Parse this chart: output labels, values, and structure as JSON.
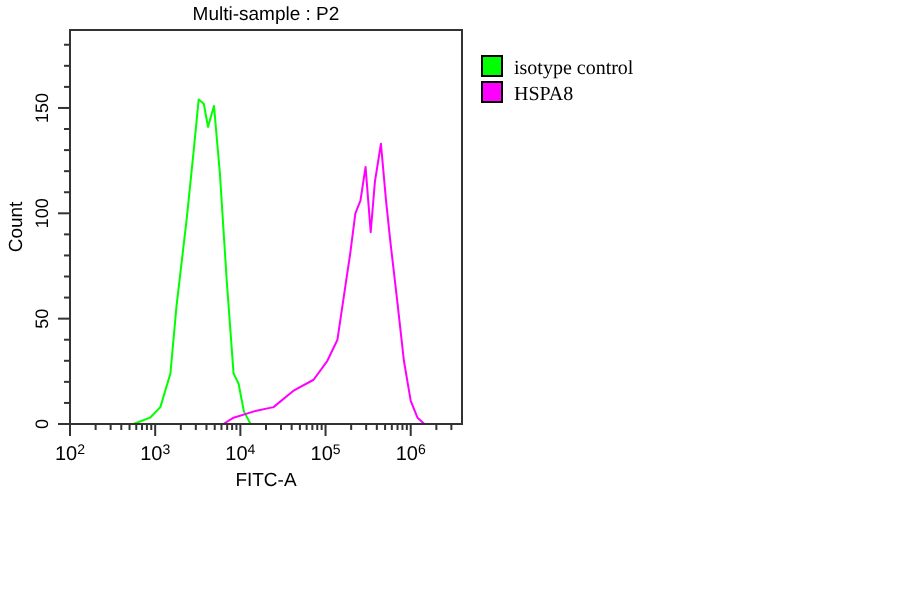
{
  "chart_data": {
    "type": "line",
    "title": "Multi-sample : P2",
    "xlabel": "FITC-A",
    "ylabel": "Count",
    "log": "x",
    "xlim": [
      100,
      4000000
    ],
    "ylim": [
      0,
      187
    ],
    "xticks": [
      {
        "value": 100,
        "label": "10$^{2}$"
      },
      {
        "value": 200,
        "label": null
      },
      {
        "value": 300,
        "label": null
      },
      {
        "value": 400,
        "label": null
      },
      {
        "value": 500,
        "label": null
      },
      {
        "value": 600,
        "label": null
      },
      {
        "value": 700,
        "label": null
      },
      {
        "value": 800,
        "label": null
      },
      {
        "value": 900,
        "label": null
      },
      {
        "value": 1000,
        "label": "10$^{3}$"
      },
      {
        "value": 2000,
        "label": null
      },
      {
        "value": 3000,
        "label": null
      },
      {
        "value": 4000,
        "label": null
      },
      {
        "value": 5000,
        "label": null
      },
      {
        "value": 6000,
        "label": null
      },
      {
        "value": 7000,
        "label": null
      },
      {
        "value": 8000,
        "label": null
      },
      {
        "value": 9000,
        "label": null
      },
      {
        "value": 10000,
        "label": "10$^{4}$"
      },
      {
        "value": 20000,
        "label": null
      },
      {
        "value": 30000,
        "label": null
      },
      {
        "value": 40000,
        "label": null
      },
      {
        "value": 50000,
        "label": null
      },
      {
        "value": 60000,
        "label": null
      },
      {
        "value": 70000,
        "label": null
      },
      {
        "value": 80000,
        "label": null
      },
      {
        "value": 90000,
        "label": null
      },
      {
        "value": 100000,
        "label": "10$^{5}$"
      },
      {
        "value": 200000,
        "label": null
      },
      {
        "value": 300000,
        "label": null
      },
      {
        "value": 400000,
        "label": null
      },
      {
        "value": 500000,
        "label": null
      },
      {
        "value": 600000,
        "label": null
      },
      {
        "value": 700000,
        "label": null
      },
      {
        "value": 800000,
        "label": null
      },
      {
        "value": 900000,
        "label": null
      },
      {
        "value": 1000000,
        "label": "10$^{6}$"
      },
      {
        "value": 2000000,
        "label": null
      },
      {
        "value": 3000000,
        "label": null
      }
    ],
    "yticks": [
      0,
      {
        "value": 10,
        "label": null
      },
      {
        "value": 20,
        "label": null
      },
      {
        "value": 30,
        "label": null
      },
      {
        "value": 40,
        "label": null
      },
      50,
      {
        "value": 60,
        "label": null
      },
      {
        "value": 70,
        "label": null
      },
      {
        "value": 80,
        "label": null
      },
      {
        "value": 90,
        "label": null
      },
      100,
      {
        "value": 110,
        "label": null
      },
      {
        "value": 120,
        "label": null
      },
      {
        "value": 130,
        "label": null
      },
      {
        "value": 140,
        "label": null
      },
      150,
      {
        "value": 160,
        "label": null
      },
      {
        "value": 170,
        "label": null
      },
      {
        "value": 180,
        "label": null
      }
    ],
    "grid": false,
    "legend": "top right",
    "marker": "none",
    "line_style": "solid",
    "series": [
      {
        "name": "isotype control",
        "color": "#00ff00",
        "x": [
          556,
          871,
          1150,
          1510,
          1780,
          2340,
          2820,
          3240,
          3720,
          4170,
          4900,
          5750,
          6920,
          8320,
          9550,
          11000,
          13200
        ],
        "values": [
          0,
          3,
          8,
          24,
          56,
          97,
          129,
          154,
          152,
          141,
          151,
          119,
          68,
          24,
          19,
          6,
          0
        ]
      },
      {
        "name": "HSPA8",
        "color": "#ff00ff",
        "x": [
          6310,
          8320,
          14500,
          24500,
          42700,
          72400,
          105000,
          138000,
          166000,
          195000,
          224000,
          257000,
          295000,
          339000,
          380000,
          447000,
          513000,
          575000,
          692000,
          832000,
          1000000,
          1200000,
          1450000
        ],
        "values": [
          0,
          3,
          6,
          8,
          16,
          21,
          30,
          40,
          62,
          81,
          100,
          106,
          122,
          91,
          115,
          133,
          106,
          87,
          59,
          30,
          11,
          3,
          0
        ]
      }
    ]
  }
}
